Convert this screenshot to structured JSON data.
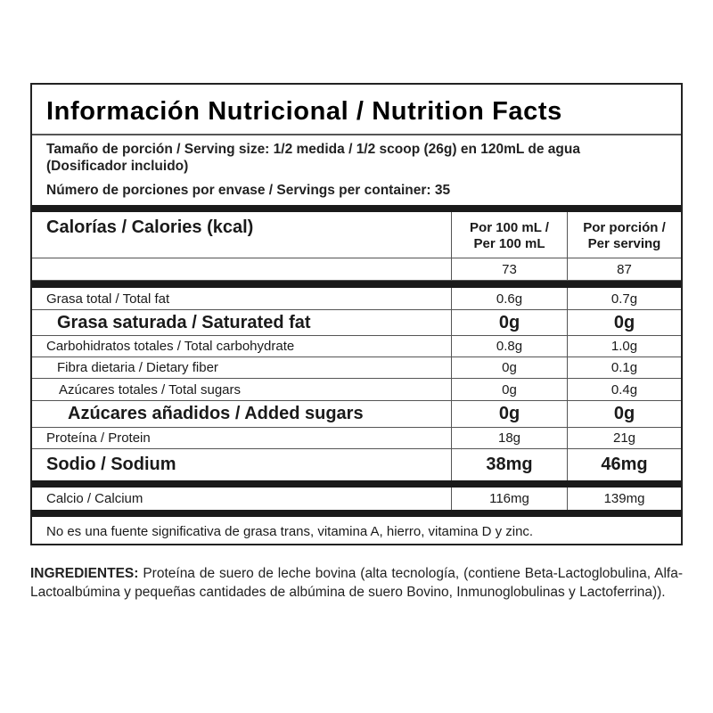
{
  "title": "Información Nutricional / Nutrition Facts",
  "serving_size": "Tamaño de porción / Serving size: 1/2 medida / 1/2 scoop (26g) en 120mL de agua",
  "serving_note": "(Dosificador incluido)",
  "servings_per_container": "Número de porciones por envase / Servings per container: 35",
  "calories": {
    "label": "Calorías / Calories (kcal)",
    "col1_line1": "Por 100 mL /",
    "col1_line2": "Per 100 mL",
    "col2_line1": "Por porción /",
    "col2_line2": "Per serving",
    "per100": "73",
    "perserving": "87"
  },
  "rows": [
    {
      "label": "Grasa total / Total fat",
      "per100": "0.6g",
      "perserving": "0.7g"
    },
    {
      "label": "Grasa saturada / Saturated fat",
      "per100": "0g",
      "perserving": "0g"
    },
    {
      "label": "Carbohidratos totales / Total carbohydrate",
      "per100": "0.8g",
      "perserving": "1.0g"
    },
    {
      "label": "Fibra dietaria / Dietary fiber",
      "per100": "0g",
      "perserving": "0.1g"
    },
    {
      "label": "Azúcares totales / Total sugars",
      "per100": "0g",
      "perserving": "0.4g"
    },
    {
      "label": "Azúcares añadidos / Added sugars",
      "per100": "0g",
      "perserving": "0g"
    },
    {
      "label": "Proteína / Protein",
      "per100": "18g",
      "perserving": "21g"
    },
    {
      "label": "Sodio / Sodium",
      "per100": "38mg",
      "perserving": "46mg"
    },
    {
      "label": "Calcio / Calcium",
      "per100": "116mg",
      "perserving": "139mg"
    }
  ],
  "footnote": "No es una fuente significativa de grasa trans, vitamina  A, hierro, vitamina D y zinc.",
  "ingredients": {
    "heading": "INGREDIENTES:",
    "text": " Proteína de suero de leche bovina (alta tecnología, (contiene Beta-Lactoglobulina, Alfa-Lactoalbúmina y pequeñas cantidades de albúmina de suero Bovino, Inmunoglobulinas y Lactoferrina))."
  }
}
